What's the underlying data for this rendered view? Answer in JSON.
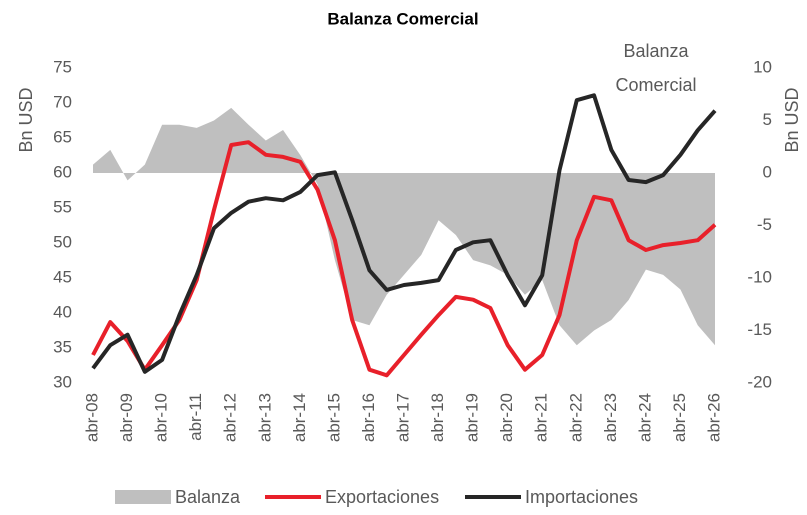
{
  "chart_data": {
    "type": "line",
    "title": "Balanza Comercial",
    "y_label": "Bn USD",
    "y2_label": "Bn USD",
    "annotation": [
      "Balanza",
      "Comercial"
    ],
    "categories": [
      "abr-08",
      null,
      "abr-09",
      null,
      "abr-10",
      null,
      "abr-11",
      null,
      "abr-12",
      null,
      "abr-13",
      null,
      "abr-14",
      null,
      "abr-15",
      null,
      "abr-16",
      null,
      "abr-17",
      null,
      "abr-18",
      null,
      "abr-19",
      null,
      "abr-20",
      null,
      "abr-21",
      null,
      "abr-22",
      null,
      "abr-23",
      null,
      "abr-24",
      null,
      "abr-25",
      null,
      "abr-26"
    ],
    "series": [
      {
        "name": "Balanza",
        "color": "#bfbfbf",
        "kind": "area",
        "axis": "y2",
        "values": [
          0.8,
          2.2,
          -0.7,
          0.8,
          4.6,
          4.6,
          4.3,
          5,
          6.2,
          4.6,
          3.1,
          4.1,
          1.7,
          -1.1,
          -8.3,
          -14,
          -14.5,
          -11.6,
          -9.7,
          -7.8,
          -4.5,
          -5.9,
          -8.3,
          -8.8,
          -9.7,
          -11.6,
          -10.2,
          -14.5,
          -16.4,
          -15,
          -14,
          -12.1,
          -9.2,
          -9.7,
          -11.1,
          -14.5,
          -16.4
        ]
      },
      {
        "name": "Exportaciones",
        "color": "#e8202a",
        "kind": "line",
        "values": [
          34,
          38.7,
          36,
          31.9,
          35.4,
          39,
          44.7,
          54.7,
          64,
          64.4,
          62.6,
          62.3,
          61.6,
          57.6,
          50.4,
          39,
          31.9,
          31.1,
          34,
          36.9,
          39.7,
          42.3,
          41.9,
          40.7,
          35.4,
          31.9,
          34,
          39.7,
          50.4,
          56.6,
          56.1,
          50.4,
          49,
          49.7,
          50,
          50.4,
          52.6
        ]
      },
      {
        "name": "Importaciones",
        "color": "#262626",
        "kind": "line",
        "values": [
          32.1,
          35.4,
          36.9,
          31.6,
          33.3,
          39.7,
          45.4,
          52.1,
          54.3,
          55.9,
          56.4,
          56.1,
          57.3,
          59.7,
          60.1,
          53.3,
          46.1,
          43.3,
          44,
          44.3,
          44.7,
          49,
          50.1,
          50.4,
          45.4,
          41.1,
          45.4,
          60.4,
          70.4,
          71.1,
          63.3,
          59,
          58.7,
          59.7,
          62.6,
          66.1,
          68.9
        ]
      }
    ],
    "ylim": [
      30,
      75
    ],
    "yticks": [
      30,
      35,
      40,
      45,
      50,
      55,
      60,
      65,
      70,
      75
    ],
    "y2lim": [
      -20,
      10
    ],
    "y2ticks": [
      -20,
      -15,
      -10,
      -5,
      0,
      5,
      10
    ]
  }
}
